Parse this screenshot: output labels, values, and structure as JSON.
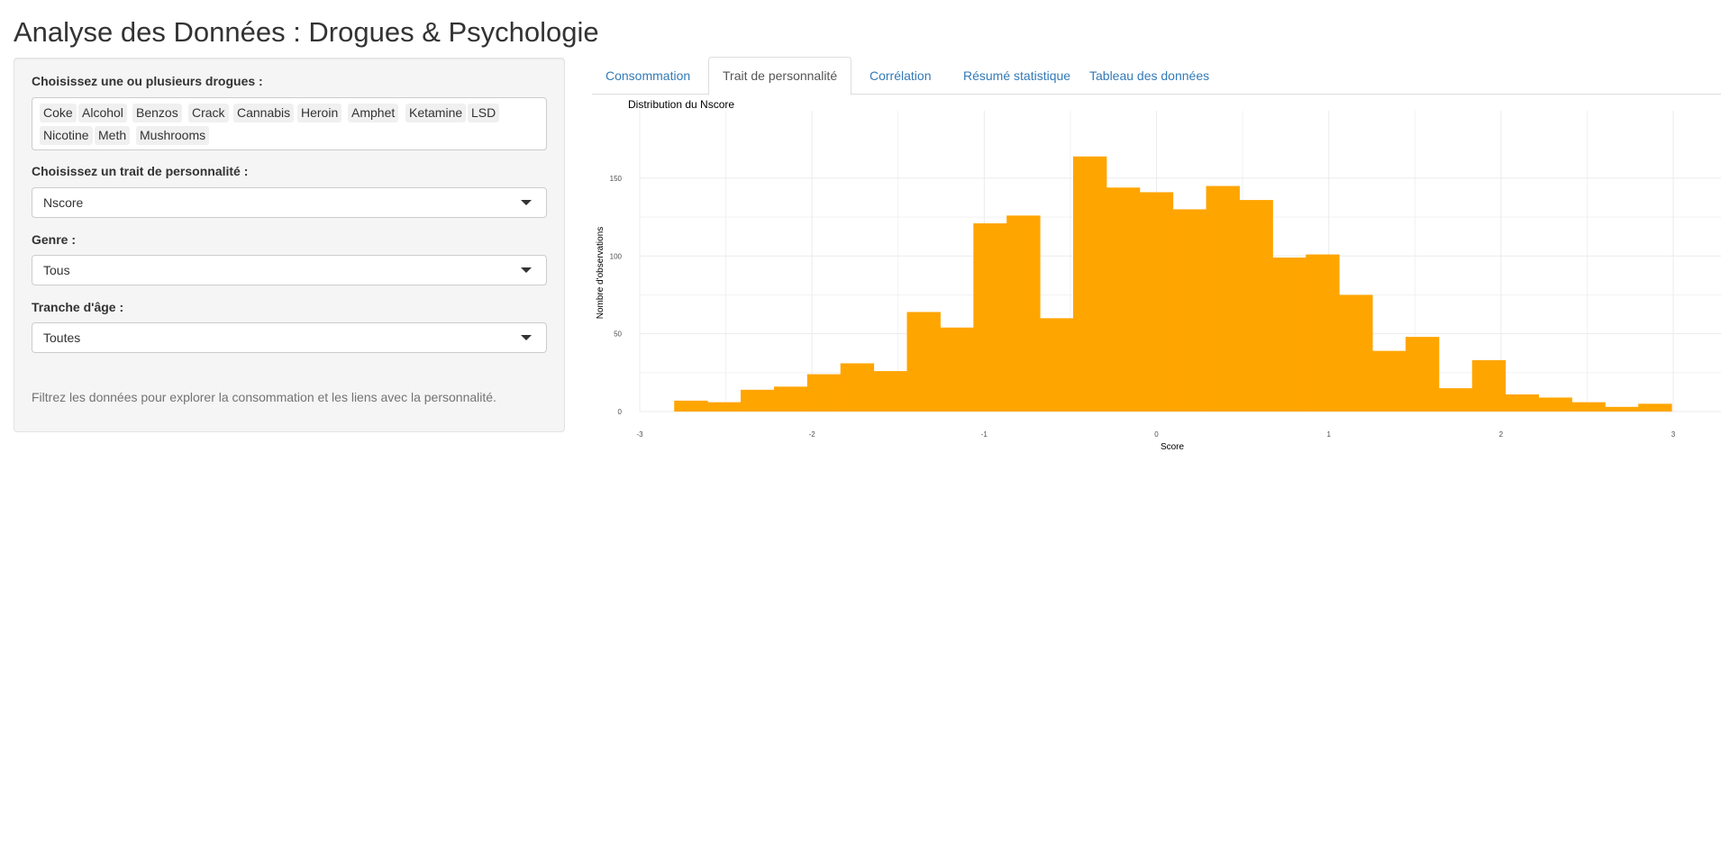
{
  "page": {
    "title": "Analyse des Données : Drogues & Psychologie"
  },
  "sidebar": {
    "drugs_label": "Choisissez une ou plusieurs drogues :",
    "drugs_selected": [
      "Coke",
      "Alcohol",
      "Benzos",
      "Crack",
      "Cannabis",
      "Heroin",
      "Amphet",
      "Ketamine",
      "LSD",
      "Nicotine",
      "Meth",
      "Mushrooms"
    ],
    "trait_label": "Choisissez un trait de personnalité :",
    "trait_value": "Nscore",
    "genre_label": "Genre :",
    "genre_value": "Tous",
    "age_label": "Tranche d'âge :",
    "age_value": "Toutes",
    "help_text": "Filtrez les données pour explorer la consommation et les liens avec la personnalité."
  },
  "tabs": [
    {
      "label": "Consommation",
      "active": false
    },
    {
      "label": "Trait de personnalité",
      "active": true
    },
    {
      "label": "Corrélation",
      "active": false
    },
    {
      "label": "Résumé statistique",
      "active": false
    },
    {
      "label": "Tableau des données",
      "active": false
    }
  ],
  "chart_data": {
    "type": "bar",
    "title": "Distribution du Nscore",
    "xlabel": "Score",
    "ylabel": "Nombre d'observations",
    "xlim": [
      -3,
      3.1
    ],
    "ylim": [
      0,
      170
    ],
    "x_ticks": [
      "-3",
      "-2",
      "-1",
      "0",
      "1",
      "2",
      "3"
    ],
    "y_ticks": [
      "0",
      "50",
      "100",
      "150"
    ],
    "bin_width": 0.193,
    "bin_starts": [
      -2.8,
      -2.607,
      -2.414,
      -2.221,
      -2.028,
      -1.835,
      -1.642,
      -1.449,
      -1.256,
      -1.063,
      -0.87,
      -0.677,
      -0.484,
      -0.291,
      -0.098,
      0.095,
      0.288,
      0.481,
      0.674,
      0.867,
      1.06,
      1.253,
      1.446,
      1.639,
      1.832,
      2.025,
      2.218,
      2.411,
      2.604,
      2.797
    ],
    "values": [
      7,
      6,
      14,
      16,
      24,
      31,
      26,
      64,
      54,
      121,
      126,
      60,
      164,
      144,
      141,
      130,
      145,
      136,
      99,
      101,
      75,
      39,
      48,
      15,
      33,
      11,
      9,
      6,
      3,
      5
    ],
    "bar_color": "#FFA500",
    "grid": true,
    "legend": "none"
  }
}
